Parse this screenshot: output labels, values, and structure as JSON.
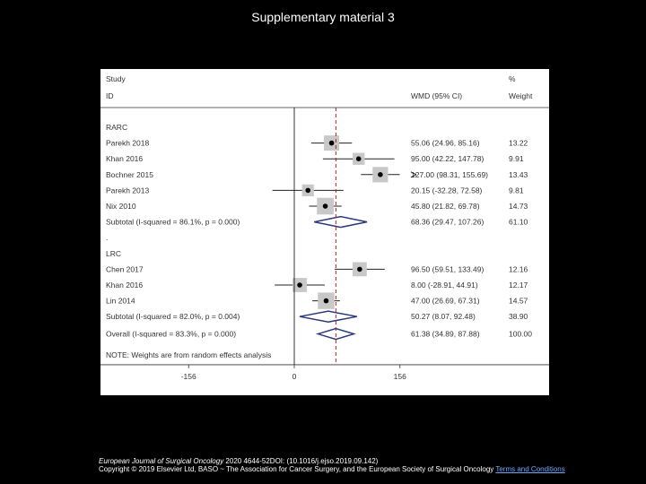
{
  "slide": {
    "title": "Supplementary material 3",
    "citation_journal": "European Journal of Surgical Oncology",
    "citation_rest": " 2020 4644-52DOI: (10.1016/j.ejso.2019.09.142)",
    "copyright": "Copyright © 2019 Elsevier Ltd, BASO ~ The Association for Cancer Surgery, and the European Society of Surgical Oncology",
    "terms_link": "Terms and Conditions"
  },
  "chart_data": {
    "type": "forest",
    "headers": {
      "study_line1": "Study",
      "study_line2": "ID",
      "effect": "WMD (95% CI)",
      "weight_line1": "%",
      "weight_line2": "Weight"
    },
    "xlim": [
      -180,
      180
    ],
    "ticks": [
      {
        "value": -156,
        "label": "-156"
      },
      {
        "value": 0,
        "label": "0"
      },
      {
        "value": 156,
        "label": "156"
      }
    ],
    "overall_line": 61.38,
    "groups": [
      {
        "label": "RARC",
        "studies": [
          {
            "name": "Parekh 2018",
            "est": 55.06,
            "lo": 24.96,
            "hi": 85.16,
            "ci_text": "55.06 (24.96, 85.16)",
            "weight": "13.22",
            "arrow": false
          },
          {
            "name": "Khan 2016",
            "est": 95.0,
            "lo": 42.22,
            "hi": 147.78,
            "ci_text": "95.00 (42.22, 147.78)",
            "weight": "9.91",
            "arrow": false
          },
          {
            "name": "Bochner 2015",
            "est": 127.0,
            "lo": 98.31,
            "hi": 155.69,
            "ci_text": "127.00 (98.31, 155.69)",
            "weight": "13.43",
            "arrow": true
          },
          {
            "name": "Parekh 2013",
            "est": 20.15,
            "lo": -32.28,
            "hi": 72.58,
            "ci_text": "20.15 (-32.28, 72.58)",
            "weight": "9.81",
            "arrow": false
          },
          {
            "name": "Nix 2010",
            "est": 45.8,
            "lo": 21.82,
            "hi": 69.78,
            "ci_text": "45.80 (21.82, 69.78)",
            "weight": "14.73",
            "arrow": false
          }
        ],
        "subtotal": {
          "label": "Subtotal  (I-squared = 86.1%, p = 0.000)",
          "est": 68.36,
          "lo": 29.47,
          "hi": 107.26,
          "ci_text": "68.36 (29.47, 107.26)",
          "weight": "61.10"
        }
      },
      {
        "label": "LRC",
        "studies": [
          {
            "name": "Chen 2017",
            "est": 96.5,
            "lo": 59.51,
            "hi": 133.49,
            "ci_text": "96.50 (59.51, 133.49)",
            "weight": "12.16",
            "arrow": false
          },
          {
            "name": "Khan 2016",
            "est": 8.0,
            "lo": -28.91,
            "hi": 44.91,
            "ci_text": "8.00 (-28.91, 44.91)",
            "weight": "12.17",
            "arrow": false
          },
          {
            "name": "Lin 2014",
            "est": 47.0,
            "lo": 26.69,
            "hi": 67.31,
            "ci_text": "47.00 (26.69, 67.31)",
            "weight": "14.57",
            "arrow": false
          }
        ],
        "subtotal": {
          "label": "Subtotal  (I-squared = 82.0%, p = 0.004)",
          "est": 50.27,
          "lo": 8.07,
          "hi": 92.48,
          "ci_text": "50.27 (8.07, 92.48)",
          "weight": "38.90"
        }
      }
    ],
    "overall": {
      "label": "Overall  (I-squared = 83.3%, p = 0.000)",
      "est": 61.38,
      "lo": 34.89,
      "hi": 87.88,
      "ci_text": "61.38 (34.89, 87.88)",
      "weight": "100.00"
    },
    "note": "NOTE: Weights are from random effects analysis",
    "colors": {
      "ci_line": "#222222",
      "diamond": "#2a3a7a",
      "overall_line": "#b02020",
      "rule": "#333333"
    }
  }
}
